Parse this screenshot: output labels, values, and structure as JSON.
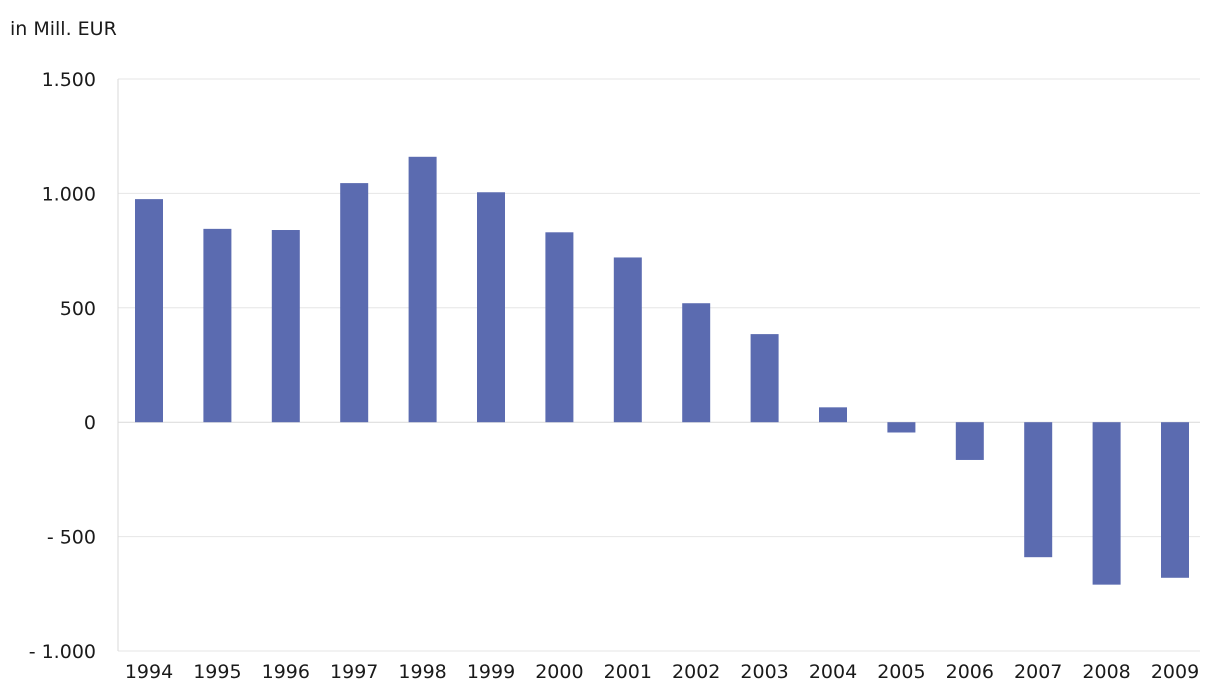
{
  "chart_data": {
    "type": "bar",
    "unit_label": "in Mill. EUR",
    "title": "",
    "xlabel": "",
    "ylabel": "in Mill. EUR",
    "categories": [
      "1994",
      "1995",
      "1996",
      "1997",
      "1998",
      "1999",
      "2000",
      "2001",
      "2002",
      "2003",
      "2004",
      "2005",
      "2006",
      "2007",
      "2008",
      "2009"
    ],
    "values": [
      975,
      845,
      840,
      1045,
      1160,
      1005,
      830,
      720,
      520,
      385,
      65,
      -45,
      -165,
      -590,
      -710,
      -680
    ],
    "ylim": [
      -1000,
      1500
    ],
    "yticks": [
      1500,
      1000,
      500,
      0,
      -500,
      -1000
    ],
    "ytick_labels": [
      "1.500",
      "1.000",
      "500",
      "0",
      "- 500",
      "- 1.000"
    ],
    "grid": true,
    "legend": "none",
    "bar_color": "#5b6bb0"
  }
}
